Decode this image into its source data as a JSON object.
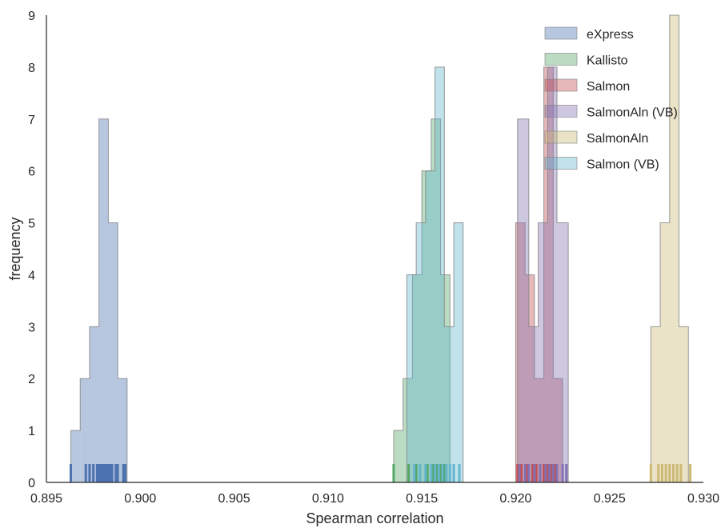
{
  "chart_data": {
    "type": "histogram",
    "title": "",
    "xlabel": "Spearman correlation",
    "ylabel": "frequency",
    "xlim": [
      0.895,
      0.93
    ],
    "ylim": [
      0,
      9
    ],
    "xticks": [
      "0.895",
      "0.900",
      "0.905",
      "0.910",
      "0.915",
      "0.920",
      "0.925",
      "0.930"
    ],
    "yticks": [
      "0",
      "1",
      "2",
      "3",
      "4",
      "5",
      "6",
      "7",
      "8",
      "9"
    ],
    "grid": false,
    "legend_position": "top-right",
    "legend_entries": [
      "eXpress",
      "Kallisto",
      "Salmon",
      "SalmonAln (VB)",
      "SalmonAln",
      "Salmon (VB)"
    ],
    "series": [
      {
        "name": "eXpress",
        "color": "#4c72b0",
        "bin_edges": [
          0.8963,
          0.8968,
          0.8973,
          0.8978,
          0.8983,
          0.8988,
          0.8993
        ],
        "counts": [
          1,
          2,
          3,
          7,
          5,
          2
        ],
        "rug": [
          0.8963,
          0.8971,
          0.8973,
          0.8975,
          0.8977,
          0.8978,
          0.8979,
          0.898,
          0.8981,
          0.8982,
          0.8983,
          0.8984,
          0.8985,
          0.8987,
          0.8988,
          0.8991,
          0.8992
        ]
      },
      {
        "name": "Kallisto",
        "color": "#55a868",
        "bin_edges": [
          0.9135,
          0.914,
          0.9145,
          0.915,
          0.9155,
          0.916,
          0.9165
        ],
        "counts": [
          1,
          2,
          4,
          6,
          7,
          4
        ],
        "rug": [
          0.9135,
          0.9143,
          0.9147,
          0.9153,
          0.9156,
          0.9158,
          0.9159,
          0.916,
          0.9161,
          0.9162,
          0.9163
        ]
      },
      {
        "name": "Salmon",
        "color": "#c44e52",
        "bin_edges": [
          0.92,
          0.9205,
          0.921,
          0.9215,
          0.922,
          0.9225
        ],
        "counts": [
          5,
          4,
          2,
          8,
          2
        ],
        "rug": [
          0.9201,
          0.9203,
          0.9206,
          0.9209,
          0.9211,
          0.9213,
          0.9215,
          0.9217,
          0.9219,
          0.9221
        ]
      },
      {
        "name": "SalmonAln (VB)",
        "color": "#8172b2",
        "bin_edges": [
          0.9201,
          0.9207,
          0.9212,
          0.9217,
          0.9222,
          0.9228
        ],
        "counts": [
          7,
          3,
          5,
          8,
          5
        ],
        "rug": [
          0.9202,
          0.9205,
          0.9207,
          0.921,
          0.9213,
          0.9216,
          0.9218,
          0.922,
          0.9222,
          0.9225,
          0.9227
        ]
      },
      {
        "name": "SalmonAln",
        "color": "#ccb974",
        "bin_edges": [
          0.9272,
          0.9277,
          0.9282,
          0.9287,
          0.9292
        ],
        "counts": [
          3,
          5,
          9,
          3
        ],
        "rug": [
          0.9272,
          0.9276,
          0.9278,
          0.928,
          0.9282,
          0.9284,
          0.9286,
          0.9288,
          0.9293
        ]
      },
      {
        "name": "Salmon (VB)",
        "color": "#64b5cd",
        "bin_edges": [
          0.9142,
          0.9147,
          0.9152,
          0.9157,
          0.9162,
          0.9167,
          0.9172
        ],
        "counts": [
          4,
          5,
          6,
          8,
          3,
          5
        ],
        "rug": [
          0.9146,
          0.9149,
          0.9152,
          0.9155,
          0.9157,
          0.9159,
          0.9161,
          0.9163,
          0.9165,
          0.9167,
          0.917
        ]
      }
    ]
  }
}
